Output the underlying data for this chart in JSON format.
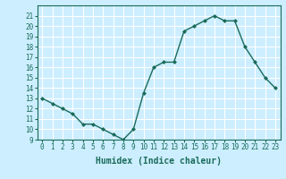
{
  "x_vals": [
    0,
    1,
    2,
    3,
    4,
    5,
    6,
    7,
    8,
    9,
    10,
    11,
    12,
    13,
    14,
    15,
    16,
    17,
    18,
    19,
    20,
    21,
    22,
    23
  ],
  "y_vals": [
    13,
    12.5,
    12,
    11.5,
    10.5,
    10.5,
    10,
    9.5,
    9,
    10,
    13.5,
    16,
    16.5,
    16.5,
    19.5,
    20,
    20.5,
    21,
    20.5,
    20.5,
    18,
    16.5,
    15,
    14
  ],
  "line_color": "#1a6b5a",
  "marker": "D",
  "marker_size": 2.0,
  "bg_color": "#cceeff",
  "grid_color": "#ffffff",
  "xlabel": "Humidex (Indice chaleur)",
  "ylim": [
    9,
    22
  ],
  "xlim": [
    -0.5,
    23.5
  ],
  "yticks": [
    9,
    10,
    11,
    12,
    13,
    14,
    15,
    16,
    17,
    18,
    19,
    20,
    21
  ],
  "xticks": [
    0,
    1,
    2,
    3,
    4,
    5,
    6,
    7,
    8,
    9,
    10,
    11,
    12,
    13,
    14,
    15,
    16,
    17,
    18,
    19,
    20,
    21,
    22,
    23
  ],
  "font_color": "#1a6b5a",
  "tick_fontsize": 5.5,
  "xlabel_fontsize": 7.0,
  "linewidth": 1.0
}
